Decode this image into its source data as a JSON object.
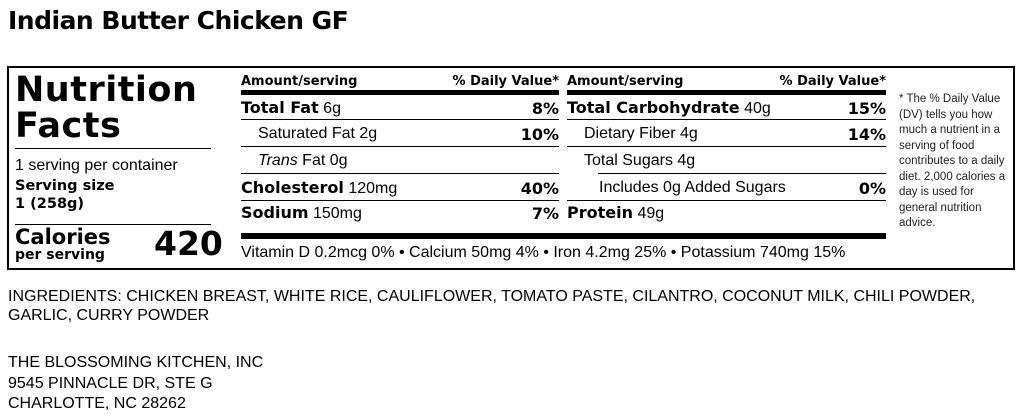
{
  "title": "Indian Butter Chicken GF",
  "label": {
    "heading_line1": "Nutrition",
    "heading_line2": "Facts",
    "servings_per_container": "1 serving per container",
    "serving_size_label": "Serving size",
    "serving_size_value": "1 (258g)",
    "calories_label": "Calories",
    "calories_sub": "per serving",
    "calories_value": "420",
    "amount_header": "Amount/serving",
    "dv_header": "% Daily Value*",
    "left_rows": [
      {
        "name": "Total Fat",
        "amount": "6g",
        "dv": "8%"
      },
      {
        "name": "Saturated Fat",
        "amount": "2g",
        "dv": "10%"
      },
      {
        "name": "Trans",
        "suffix": "Fat 0g",
        "dv": ""
      },
      {
        "name": "Cholesterol",
        "amount": "120mg",
        "dv": "40%"
      },
      {
        "name": "Sodium",
        "amount": "150mg",
        "dv": "7%"
      }
    ],
    "right_rows": [
      {
        "name": "Total Carbohydrate",
        "amount": "40g",
        "dv": "15%"
      },
      {
        "name": "Dietary Fiber",
        "amount": "4g",
        "dv": "14%"
      },
      {
        "name": "Total Sugars",
        "amount": "4g",
        "dv": ""
      },
      {
        "name": "Includes 0g Added Sugars",
        "dv": "0%"
      },
      {
        "name": "Protein",
        "amount": "49g",
        "dv": ""
      }
    ],
    "vitamins": "Vitamin D 0.2mcg 0% • Calcium 50mg 4% • Iron 4.2mg 25% • Potassium 740mg 15%",
    "footnote": "* The % Daily Value (DV) tells you how much a nutrient in a serving of food contributes to a daily diet. 2,000 calories a day is used for general nutrition advice."
  },
  "ingredients": "INGREDIENTS: CHICKEN BREAST, WHITE RICE, CAULIFLOWER, TOMATO PASTE, CILANTRO, COCONUT MILK, CHILI POWDER, GARLIC, CURRY POWDER",
  "address": [
    "THE BLOSSOMING KITCHEN, INC",
    "9545 PINNACLE DR, STE G",
    "CHARLOTTE, NC 28262"
  ]
}
